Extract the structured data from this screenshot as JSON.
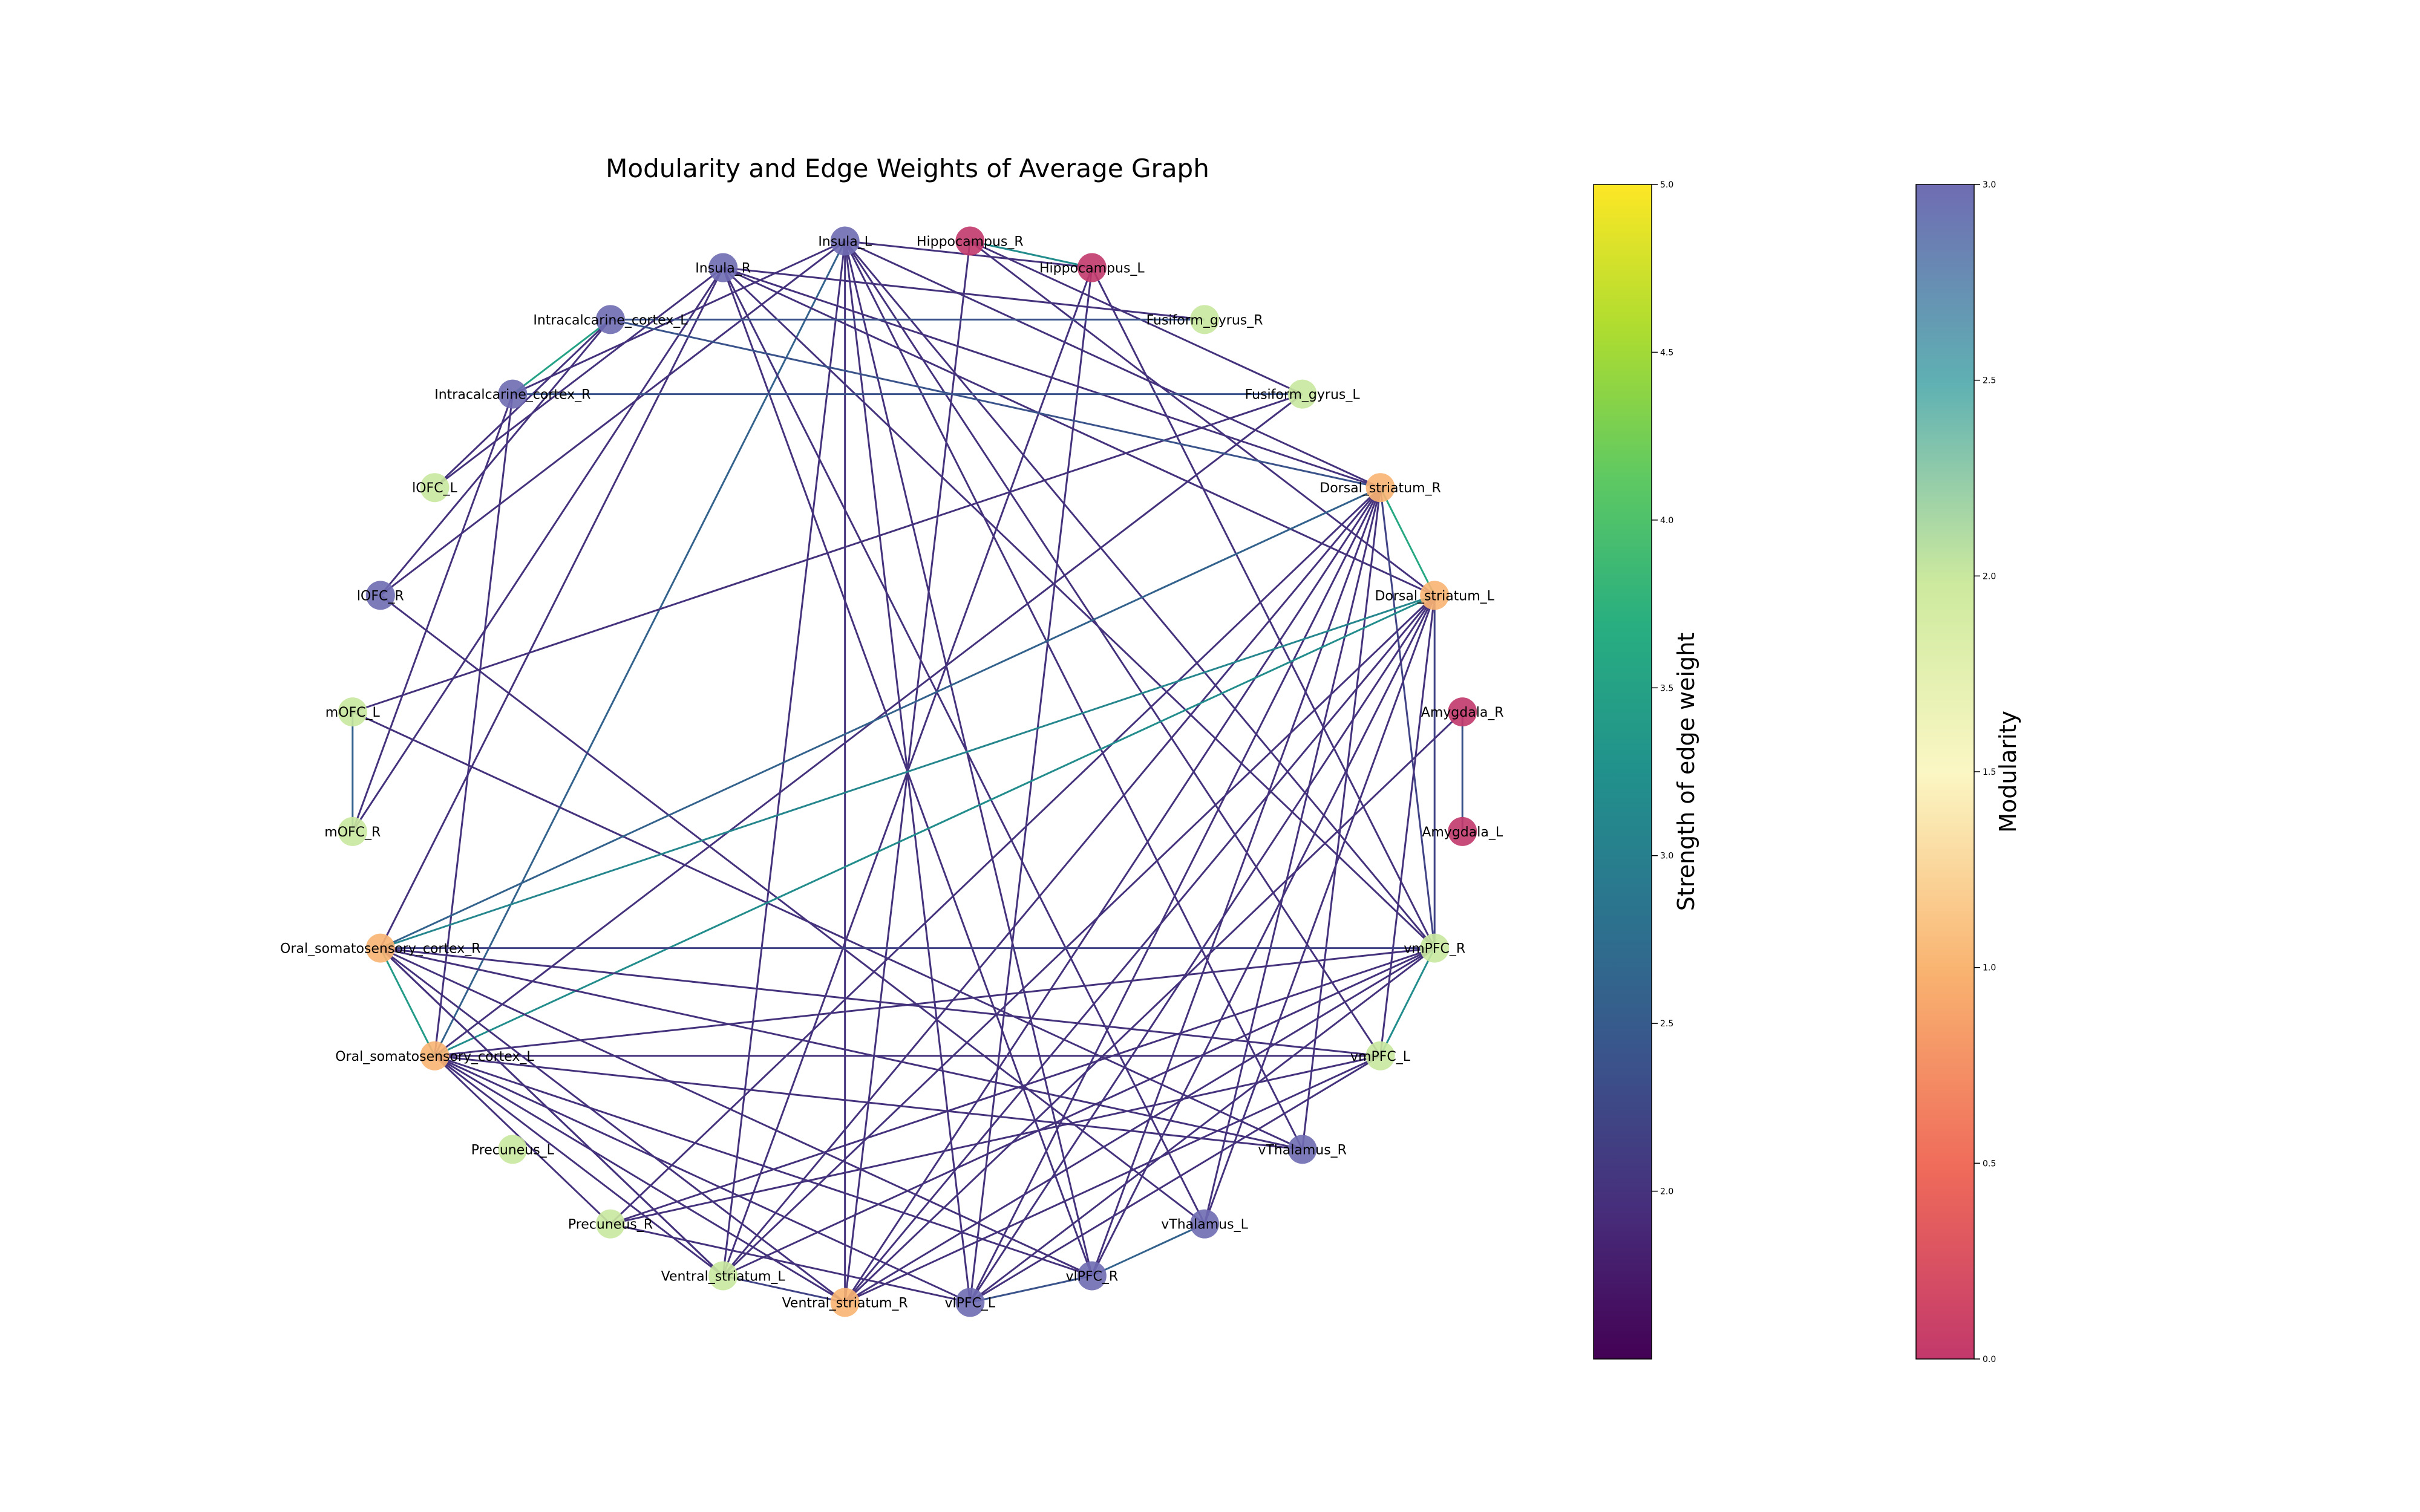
{
  "title": "Modularity and Edge Weights of Average Graph",
  "nodes": [
    {
      "label": "Hippocampus_R",
      "module": 0.0
    },
    {
      "label": "Hippocampus_L",
      "module": 0.0
    },
    {
      "label": "Fusiform_gyrus_R",
      "module": 2.0
    },
    {
      "label": "Fusiform_gyrus_L",
      "module": 2.0
    },
    {
      "label": "Dorsal_striatum_R",
      "module": 1.0
    },
    {
      "label": "Dorsal_striatum_L",
      "module": 1.0
    },
    {
      "label": "Amygdala_R",
      "module": 0.0
    },
    {
      "label": "Amygdala_L",
      "module": 0.0
    },
    {
      "label": "vmPFC_R",
      "module": 2.0
    },
    {
      "label": "vmPFC_L",
      "module": 2.0
    },
    {
      "label": "vThalamus_R",
      "module": 3.0
    },
    {
      "label": "vThalamus_L",
      "module": 3.0
    },
    {
      "label": "vlPFC_R",
      "module": 3.0
    },
    {
      "label": "vlPFC_L",
      "module": 3.0
    },
    {
      "label": "Ventral_striatum_R",
      "module": 1.0
    },
    {
      "label": "Ventral_striatum_L",
      "module": 2.0
    },
    {
      "label": "Precuneus_R",
      "module": 2.0
    },
    {
      "label": "Precuneus_L",
      "module": 2.0
    },
    {
      "label": "Oral_somatosensory_cortex_L",
      "module": 1.0
    },
    {
      "label": "Oral_somatosensory_cortex_R",
      "module": 1.0
    },
    {
      "label": "mOFC_R",
      "module": 2.0
    },
    {
      "label": "mOFC_L",
      "module": 2.0
    },
    {
      "label": "lOFC_R",
      "module": 3.0
    },
    {
      "label": "lOFC_L",
      "module": 2.0
    },
    {
      "label": "Intracalcarine_cortex_R",
      "module": 3.0
    },
    {
      "label": "Intracalcarine_cortex_L",
      "module": 3.0
    },
    {
      "label": "Insula_R",
      "module": 3.0
    },
    {
      "label": "Insula_L",
      "module": 3.0
    }
  ],
  "edges": [
    [
      "Hippocampus_R",
      "Hippocampus_L",
      3.2
    ],
    [
      "Insula_L",
      "Hippocampus_L",
      2.0
    ],
    [
      "Insula_L",
      "Dorsal_striatum_R",
      2.0
    ],
    [
      "Insula_L",
      "vmPFC_R",
      2.0
    ],
    [
      "Insula_L",
      "vmPFC_L",
      2.0
    ],
    [
      "Insula_L",
      "vThalamus_R",
      2.0
    ],
    [
      "Insula_L",
      "vlPFC_R",
      2.0
    ],
    [
      "Insula_L",
      "vlPFC_L",
      2.0
    ],
    [
      "Insula_L",
      "Ventral_striatum_R",
      2.0
    ],
    [
      "Insula_L",
      "Ventral_striatum_L",
      2.0
    ],
    [
      "Insula_L",
      "Oral_somatosensory_cortex_L",
      2.6
    ],
    [
      "Insula_L",
      "Intracalcarine_cortex_R",
      2.0
    ],
    [
      "Insula_L",
      "lOFC_R",
      2.0
    ],
    [
      "Insula_R",
      "Dorsal_striatum_R",
      2.0
    ],
    [
      "Insula_R",
      "Dorsal_striatum_L",
      2.0
    ],
    [
      "Insula_R",
      "vmPFC_R",
      2.0
    ],
    [
      "Insula_R",
      "vThalamus_L",
      2.0
    ],
    [
      "Insula_R",
      "vlPFC_R",
      2.0
    ],
    [
      "Insula_R",
      "Oral_somatosensory_cortex_R",
      2.0
    ],
    [
      "Insula_R",
      "mOFC_R",
      2.0
    ],
    [
      "Insula_R",
      "lOFC_L",
      2.0
    ],
    [
      "Insula_R",
      "Fusiform_gyrus_R",
      2.0
    ],
    [
      "Hippocampus_R",
      "Fusiform_gyrus_L",
      2.0
    ],
    [
      "Hippocampus_R",
      "Ventral_striatum_R",
      2.0
    ],
    [
      "Hippocampus_L",
      "Ventral_striatum_L",
      2.0
    ],
    [
      "Hippocampus_L",
      "vlPFC_L",
      2.0
    ],
    [
      "Hippocampus_L",
      "vmPFC_R",
      2.0
    ],
    [
      "Hippocampus_R",
      "Dorsal_striatum_L",
      2.0
    ],
    [
      "Fusiform_gyrus_R",
      "Intracalcarine_cortex_L",
      2.4
    ],
    [
      "Fusiform_gyrus_L",
      "mOFC_L",
      2.0
    ],
    [
      "Fusiform_gyrus_L",
      "Oral_somatosensory_cortex_L",
      2.0
    ],
    [
      "Intracalcarine_cortex_L",
      "Intracalcarine_cortex_R",
      3.5
    ],
    [
      "Intracalcarine_cortex_L",
      "Dorsal_striatum_R",
      2.4
    ],
    [
      "Intracalcarine_cortex_L",
      "lOFC_R",
      2.0
    ],
    [
      "Intracalcarine_cortex_L",
      "lOFC_L",
      2.0
    ],
    [
      "Intracalcarine_cortex_R",
      "Fusiform_gyrus_L",
      2.4
    ],
    [
      "Intracalcarine_cortex_R",
      "mOFC_R",
      2.0
    ],
    [
      "Intracalcarine_cortex_R",
      "Oral_somatosensory_cortex_L",
      2.0
    ],
    [
      "lOFC_R",
      "vThalamus_L",
      2.0
    ],
    [
      "mOFC_L",
      "mOFC_R",
      2.6
    ],
    [
      "mOFC_L",
      "vThalamus_R",
      2.0
    ],
    [
      "Dorsal_striatum_R",
      "Dorsal_striatum_L",
      3.6
    ],
    [
      "Dorsal_striatum_R",
      "Oral_somatosensory_cortex_R",
      2.6
    ],
    [
      "Dorsal_striatum_R",
      "vmPFC_R",
      2.2
    ],
    [
      "Dorsal_striatum_R",
      "vThalamus_R",
      2.0
    ],
    [
      "Dorsal_striatum_R",
      "vThalamus_L",
      2.0
    ],
    [
      "Dorsal_striatum_R",
      "vlPFC_R",
      2.0
    ],
    [
      "Dorsal_striatum_R",
      "vlPFC_L",
      2.0
    ],
    [
      "Dorsal_striatum_R",
      "Ventral_striatum_R",
      2.0
    ],
    [
      "Dorsal_striatum_R",
      "Ventral_striatum_L",
      2.0
    ],
    [
      "Dorsal_striatum_R",
      "Precuneus_R",
      2.0
    ],
    [
      "Dorsal_striatum_L",
      "Oral_somatosensory_cortex_L",
      3.2
    ],
    [
      "Dorsal_striatum_L",
      "Oral_somatosensory_cortex_R",
      3.1
    ],
    [
      "Dorsal_striatum_L",
      "vmPFC_R",
      2.2
    ],
    [
      "Dorsal_striatum_L",
      "vmPFC_L",
      2.0
    ],
    [
      "Dorsal_striatum_L",
      "vThalamus_L",
      2.0
    ],
    [
      "Dorsal_striatum_L",
      "vlPFC_R",
      2.0
    ],
    [
      "Dorsal_striatum_L",
      "vlPFC_L",
      2.0
    ],
    [
      "Dorsal_striatum_L",
      "Ventral_striatum_R",
      2.0
    ],
    [
      "Dorsal_striatum_L",
      "Ventral_striatum_L",
      2.0
    ],
    [
      "Amygdala_R",
      "Amygdala_L",
      2.4
    ],
    [
      "Amygdala_R",
      "Ventral_striatum_R",
      2.0
    ],
    [
      "vmPFC_R",
      "vmPFC_L",
      3.2
    ],
    [
      "vmPFC_R",
      "Oral_somatosensory_cortex_R",
      2.2
    ],
    [
      "vmPFC_R",
      "Oral_somatosensory_cortex_L",
      2.0
    ],
    [
      "vmPFC_R",
      "Ventral_striatum_R",
      2.0
    ],
    [
      "vmPFC_R",
      "Ventral_striatum_L",
      2.0
    ],
    [
      "vmPFC_R",
      "Precuneus_R",
      2.0
    ],
    [
      "vmPFC_R",
      "vlPFC_L",
      2.0
    ],
    [
      "vmPFC_L",
      "Oral_somatosensory_cortex_R",
      2.0
    ],
    [
      "vmPFC_L",
      "Oral_somatosensory_cortex_L",
      2.0
    ],
    [
      "vmPFC_L",
      "Ventral_striatum_R",
      2.0
    ],
    [
      "vmPFC_L",
      "vlPFC_L",
      2.0
    ],
    [
      "vmPFC_L",
      "Precuneus_R",
      2.0
    ],
    [
      "vThalamus_R",
      "Oral_somatosensory_cortex_L",
      2.0
    ],
    [
      "vThalamus_R",
      "Oral_somatosensory_cortex_R",
      2.0
    ],
    [
      "vThalamus_L",
      "vlPFC_R",
      2.6
    ],
    [
      "vlPFC_R",
      "vlPFC_L",
      2.4
    ],
    [
      "vlPFC_R",
      "Oral_somatosensory_cortex_L",
      2.0
    ],
    [
      "vlPFC_R",
      "Oral_somatosensory_cortex_R",
      2.0
    ],
    [
      "vlPFC_L",
      "Oral_somatosensory_cortex_L",
      2.0
    ],
    [
      "vlPFC_L",
      "Precuneus_R",
      2.0
    ],
    [
      "Ventral_striatum_R",
      "Ventral_striatum_L",
      2.2
    ],
    [
      "Ventral_striatum_R",
      "Oral_somatosensory_cortex_L",
      2.0
    ],
    [
      "Ventral_striatum_R",
      "Oral_somatosensory_cortex_R",
      2.0
    ],
    [
      "Ventral_striatum_L",
      "Oral_somatosensory_cortex_L",
      2.0
    ],
    [
      "Ventral_striatum_L",
      "Oral_somatosensory_cortex_R",
      2.0
    ],
    [
      "Precuneus_R",
      "Oral_somatosensory_cortex_L",
      2.0
    ],
    [
      "Oral_somatosensory_cortex_L",
      "Oral_somatosensory_cortex_R",
      3.4
    ],
    [
      "Oral_somatosensory_cortex_R",
      "Ventral_striatum_L",
      2.0
    ]
  ],
  "edge_colorbar": {
    "label": "Strength of edge weight",
    "min": 1.5,
    "max": 5.0,
    "ticks": [
      "2.0",
      "2.5",
      "3.0",
      "3.5",
      "4.0",
      "4.5",
      "5.0"
    ]
  },
  "modularity_colorbar": {
    "label": "Modularity",
    "min": 0.0,
    "max": 3.0,
    "ticks": [
      "0.0",
      "0.5",
      "1.0",
      "1.5",
      "2.0",
      "2.5",
      "3.0"
    ]
  }
}
